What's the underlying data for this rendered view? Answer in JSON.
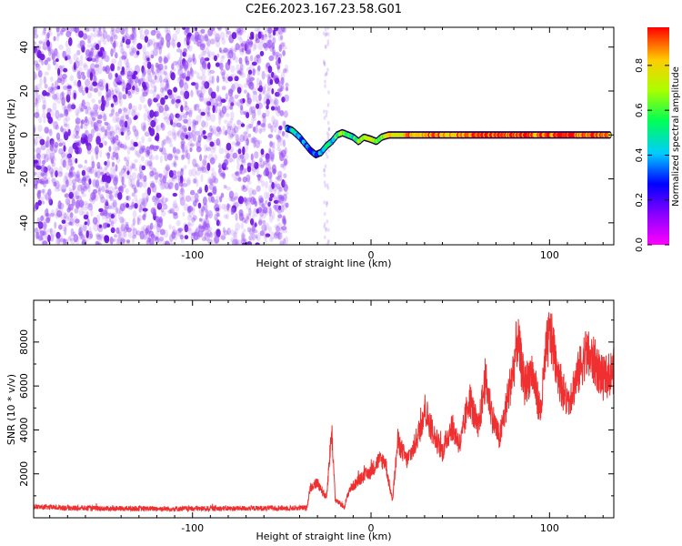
{
  "title": "C2E6.2023.167.23.58.G01",
  "colors": {
    "spectrogram_scatter": "#7a22f0",
    "snr_line": "#f03030",
    "frame": "#000000"
  },
  "chart_data": [
    {
      "type": "heatmap",
      "xlabel": "Height of straight line (km)",
      "ylabel": "Frequency (Hz)",
      "xlim": [
        -189,
        136
      ],
      "ylim": [
        -50,
        49
      ],
      "xticks": [
        -100,
        0,
        100
      ],
      "yticks": [
        -40,
        -20,
        0,
        20,
        40
      ],
      "colorbar": {
        "label": "Normalized spectral amplitude",
        "range": [
          0.0,
          0.97
        ],
        "ticks": [
          "0.0",
          "0.2",
          "0.4",
          "0.6",
          "0.8"
        ],
        "colormap": "rainbow (magenta-blue-cyan-green-yellow-red)"
      },
      "noise_region_x": [
        -189,
        -47
      ],
      "signal_trace": {
        "x": [
          -47,
          -44,
          -40,
          -37,
          -34,
          -31,
          -28,
          -25,
          -22,
          -19,
          -16,
          -13,
          -10,
          -7,
          -4,
          0,
          3,
          6,
          10,
          14,
          20,
          30,
          45,
          60,
          80,
          100,
          120,
          134
        ],
        "frequency_hz": [
          3,
          2,
          -1,
          -4,
          -7,
          -9,
          -8,
          -5,
          -3,
          0,
          1,
          0,
          -1,
          -3,
          -1,
          -2,
          -3,
          -1,
          0,
          0,
          0,
          0,
          0,
          0,
          0,
          0,
          0,
          0
        ],
        "amplitude": [
          0.35,
          0.45,
          0.35,
          0.3,
          0.35,
          0.3,
          0.4,
          0.5,
          0.45,
          0.6,
          0.7,
          0.55,
          0.5,
          0.65,
          0.7,
          0.75,
          0.6,
          0.7,
          0.8,
          0.75,
          0.85,
          0.9,
          0.9,
          0.95,
          0.95,
          0.95,
          0.95,
          0.9
        ]
      }
    },
    {
      "type": "line",
      "xlabel": "Height of straight line (km)",
      "ylabel": "SNR (10 * v/v)",
      "xlim": [
        -189,
        136
      ],
      "ylim": [
        0,
        9900
      ],
      "xticks": [
        -100,
        0,
        100
      ],
      "yticks": [
        2000,
        4000,
        6000,
        8000
      ],
      "series": [
        {
          "x": [
            -189,
            -170,
            -150,
            -130,
            -110,
            -90,
            -70,
            -50,
            -36,
            -34,
            -30,
            -25,
            -22,
            -20,
            -15,
            -12,
            -8,
            -4,
            0,
            4,
            8,
            10,
            12,
            15,
            20,
            24,
            28,
            30,
            35,
            40,
            45,
            50,
            55,
            60,
            64,
            68,
            72,
            76,
            80,
            82,
            86,
            90,
            95,
            98,
            100,
            102,
            106,
            110,
            115,
            120,
            125,
            130,
            136
          ],
          "values": [
            500,
            450,
            420,
            420,
            410,
            420,
            430,
            440,
            450,
            1400,
            1600,
            900,
            4000,
            800,
            500,
            1300,
            1600,
            1900,
            2100,
            2600,
            2600,
            1600,
            800,
            3500,
            2600,
            3200,
            4200,
            5000,
            3800,
            3000,
            4200,
            3300,
            5500,
            4000,
            6300,
            4600,
            3600,
            5200,
            6900,
            8200,
            6000,
            6700,
            4800,
            7500,
            8400,
            7800,
            6200,
            5200,
            6300,
            7500,
            7100,
            6300,
            6700
          ]
        }
      ]
    }
  ]
}
